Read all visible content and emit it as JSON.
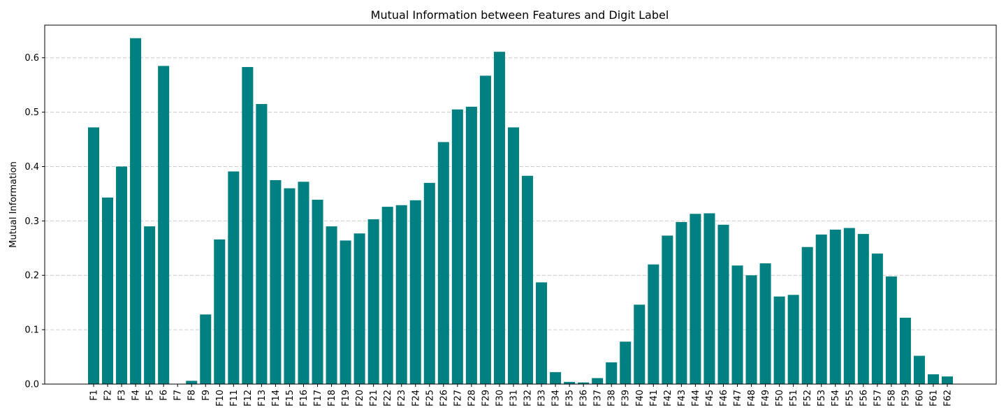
{
  "chart_data": {
    "type": "bar",
    "title": "Mutual Information between Features and Digit Label",
    "xlabel": "",
    "ylabel": "Mutual Information",
    "ylim": [
      0,
      0.66
    ],
    "yticks": [
      "0.0",
      "0.1",
      "0.2",
      "0.3",
      "0.4",
      "0.5",
      "0.6"
    ],
    "grid": "y-dashed",
    "bar_color": "#008080",
    "categories": [
      "F1",
      "F2",
      "F3",
      "F4",
      "F5",
      "F6",
      "F7",
      "F8",
      "F9",
      "F10",
      "F11",
      "F12",
      "F13",
      "F14",
      "F15",
      "F16",
      "F17",
      "F18",
      "F19",
      "F20",
      "F21",
      "F22",
      "F23",
      "F24",
      "F25",
      "F26",
      "F27",
      "F28",
      "F29",
      "F30",
      "F31",
      "F32",
      "F33",
      "F34",
      "F35",
      "F36",
      "F37",
      "F38",
      "F39",
      "F40",
      "F41",
      "F42",
      "F43",
      "F44",
      "F45",
      "F46",
      "F47",
      "F48",
      "F49",
      "F50",
      "F51",
      "F52",
      "F53",
      "F54",
      "F55",
      "F56",
      "F57",
      "F58",
      "F59",
      "F60",
      "F61",
      "F62"
    ],
    "values": [
      0.472,
      0.343,
      0.4,
      0.636,
      0.29,
      0.585,
      0.0,
      0.006,
      0.128,
      0.266,
      0.391,
      0.583,
      0.515,
      0.375,
      0.36,
      0.372,
      0.339,
      0.29,
      0.264,
      0.277,
      0.303,
      0.326,
      0.329,
      0.338,
      0.37,
      0.445,
      0.505,
      0.51,
      0.567,
      0.611,
      0.472,
      0.383,
      0.187,
      0.022,
      0.004,
      0.003,
      0.011,
      0.04,
      0.078,
      0.146,
      0.22,
      0.273,
      0.298,
      0.313,
      0.314,
      0.293,
      0.218,
      0.2,
      0.222,
      0.161,
      0.164,
      0.252,
      0.275,
      0.284,
      0.287,
      0.276,
      0.24,
      0.198,
      0.122,
      0.052,
      0.018,
      0.014
    ]
  }
}
